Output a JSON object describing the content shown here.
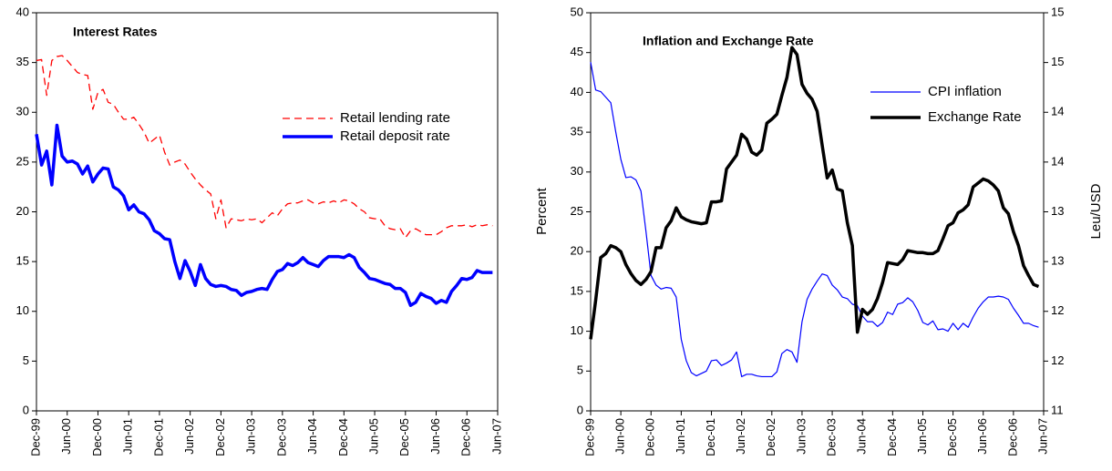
{
  "chart_data": [
    {
      "type": "line",
      "title": "Interest Rates",
      "categories": [
        "Dec-99",
        null,
        null,
        null,
        null,
        null,
        "Jun-00",
        null,
        null,
        null,
        null,
        null,
        "Dec-00",
        null,
        null,
        null,
        null,
        null,
        "Jun-01",
        null,
        null,
        null,
        null,
        null,
        "Dec-01",
        null,
        null,
        null,
        null,
        null,
        "Jun-02",
        null,
        null,
        null,
        null,
        null,
        "Dec-02",
        null,
        null,
        null,
        null,
        null,
        "Jun-03",
        null,
        null,
        null,
        null,
        null,
        "Dec-03",
        null,
        null,
        null,
        null,
        null,
        "Jun-04",
        null,
        null,
        null,
        null,
        null,
        "Dec-04",
        null,
        null,
        null,
        null,
        null,
        "Jun-05",
        null,
        null,
        null,
        null,
        null,
        "Dec-05",
        null,
        null,
        null,
        null,
        null,
        "Jun-06",
        null,
        null,
        null,
        null,
        null,
        "Dec-06",
        null,
        null,
        null,
        null,
        null,
        "Jun-07"
      ],
      "series": [
        {
          "name": "Retail lending rate",
          "color": "#ff0000",
          "style": "dashed",
          "values": [
            35.2,
            35.3,
            31.7,
            35.2,
            35.6,
            35.7,
            35.2,
            34.6,
            34.0,
            33.8,
            33.7,
            30.3,
            32.0,
            32.3,
            31.0,
            30.8,
            30.0,
            29.3,
            29.3,
            29.5,
            28.8,
            28.0,
            26.9,
            27.3,
            27.7,
            26.0,
            24.7,
            25.0,
            25.2,
            24.8,
            24.0,
            23.3,
            22.7,
            22.2,
            21.8,
            19.3,
            21.2,
            18.4,
            19.3,
            19.2,
            19.1,
            19.3,
            19.2,
            19.3,
            18.9,
            19.4,
            19.9,
            19.6,
            20.3,
            20.8,
            20.9,
            20.9,
            21.1,
            21.2,
            20.9,
            20.8,
            21.0,
            20.9,
            21.1,
            20.9,
            21.2,
            21.1,
            20.8,
            20.3,
            20.0,
            19.4,
            19.3,
            19.3,
            18.6,
            18.3,
            18.2,
            18.3,
            17.4,
            18.1,
            18.3,
            18.0,
            17.7,
            17.7,
            17.7,
            18.0,
            18.4,
            18.6,
            18.6,
            18.6,
            18.7,
            18.5,
            18.7,
            18.6,
            18.7,
            18.6,
            null
          ]
        },
        {
          "name": "Retail deposit rate",
          "color": "#0000ff",
          "style": "solid",
          "values": [
            27.8,
            24.7,
            26.1,
            22.7,
            28.7,
            25.6,
            25.0,
            25.1,
            24.8,
            23.8,
            24.6,
            23.0,
            23.8,
            24.4,
            24.3,
            22.5,
            22.2,
            21.6,
            20.2,
            20.7,
            20.0,
            19.8,
            19.2,
            18.1,
            17.8,
            17.3,
            17.2,
            15.0,
            13.3,
            15.1,
            14.0,
            12.6,
            14.7,
            13.3,
            12.7,
            12.5,
            12.6,
            12.5,
            12.2,
            12.1,
            11.6,
            11.9,
            12.0,
            12.2,
            12.3,
            12.2,
            13.2,
            14.0,
            14.2,
            14.8,
            14.6,
            14.9,
            15.4,
            14.9,
            14.7,
            14.5,
            15.1,
            15.5,
            15.5,
            15.5,
            15.4,
            15.7,
            15.4,
            14.4,
            13.9,
            13.3,
            13.2,
            13.0,
            12.8,
            12.7,
            12.3,
            12.3,
            11.9,
            10.6,
            10.9,
            11.8,
            11.5,
            11.3,
            10.8,
            11.1,
            10.9,
            12.0,
            12.6,
            13.3,
            13.2,
            13.4,
            14.1,
            13.9,
            13.9,
            13.9,
            null
          ]
        }
      ],
      "ylim": [
        0,
        40
      ],
      "yticks": [
        0,
        5,
        10,
        15,
        20,
        25,
        30,
        35,
        40
      ],
      "legend": "upper right"
    },
    {
      "type": "line",
      "title": "Inflation and Exchange Rate",
      "y_label": "Percent",
      "y2_label": "Leu/USD",
      "categories": [
        "Dec-99",
        null,
        null,
        null,
        null,
        null,
        "Jun-00",
        null,
        null,
        null,
        null,
        null,
        "Dec-00",
        null,
        null,
        null,
        null,
        null,
        "Jun-01",
        null,
        null,
        null,
        null,
        null,
        "Dec-01",
        null,
        null,
        null,
        null,
        null,
        "Jun-02",
        null,
        null,
        null,
        null,
        null,
        "Dec-02",
        null,
        null,
        null,
        null,
        null,
        "Jun-03",
        null,
        null,
        null,
        null,
        null,
        "Dec-03",
        null,
        null,
        null,
        null,
        null,
        "Jun-04",
        null,
        null,
        null,
        null,
        null,
        "Dec-04",
        null,
        null,
        null,
        null,
        null,
        "Jun-05",
        null,
        null,
        null,
        null,
        null,
        "Dec-05",
        null,
        null,
        null,
        null,
        null,
        "Jun-06",
        null,
        null,
        null,
        null,
        null,
        "Dec-06",
        null,
        null,
        null,
        null,
        null,
        "Jun-07"
      ],
      "series": [
        {
          "name": "CPI inflation",
          "color": "#0000ff",
          "style": "solid",
          "values": [
            43.8,
            40.3,
            40.1,
            39.4,
            38.7,
            35.0,
            31.6,
            29.3,
            29.4,
            29.0,
            27.6,
            22.5,
            17.0,
            15.8,
            15.3,
            15.5,
            15.4,
            14.3,
            9.0,
            6.3,
            4.8,
            4.4,
            4.7,
            5.0,
            6.3,
            6.4,
            5.7,
            6.0,
            6.4,
            7.4,
            4.3,
            4.6,
            4.6,
            4.4,
            4.3,
            4.3,
            4.3,
            4.9,
            7.2,
            7.7,
            7.4,
            6.1,
            11.2,
            14.0,
            15.3,
            16.3,
            17.2,
            17.0,
            15.8,
            15.2,
            14.3,
            14.1,
            13.4,
            13.2,
            11.9,
            11.2,
            11.2,
            10.6,
            11.1,
            12.4,
            12.1,
            13.4,
            13.6,
            14.2,
            13.7,
            12.6,
            11.1,
            10.8,
            11.3,
            10.2,
            10.3,
            10.0,
            11.0,
            10.2,
            11.0,
            10.5,
            11.8,
            12.9,
            13.7,
            14.3,
            14.3,
            14.4,
            14.3,
            14.0,
            12.9,
            12.0,
            11.0,
            11.0,
            10.7,
            10.5,
            null
          ]
        },
        {
          "name": "Exchange Rate",
          "color": "#000000",
          "style": "solid",
          "axis": "y2",
          "values": [
            11.72,
            12.11,
            12.54,
            12.58,
            12.66,
            12.64,
            12.6,
            12.47,
            12.38,
            12.31,
            12.27,
            12.32,
            12.4,
            12.64,
            12.64,
            12.84,
            12.91,
            13.04,
            12.95,
            12.92,
            12.9,
            12.89,
            12.88,
            12.89,
            13.1,
            13.1,
            13.11,
            13.43,
            13.5,
            13.57,
            13.78,
            13.73,
            13.6,
            13.57,
            13.62,
            13.89,
            13.93,
            13.98,
            14.17,
            14.35,
            14.65,
            14.58,
            14.28,
            14.19,
            14.13,
            14.01,
            13.67,
            13.34,
            13.42,
            13.23,
            13.21,
            12.89,
            12.66,
            11.79,
            12.02,
            11.97,
            12.02,
            12.13,
            12.29,
            12.49,
            12.48,
            12.47,
            12.52,
            12.61,
            12.6,
            12.59,
            12.59,
            12.58,
            12.58,
            12.61,
            12.73,
            12.86,
            12.89,
            12.99,
            13.02,
            13.07,
            13.25,
            13.29,
            13.33,
            13.31,
            13.27,
            13.21,
            13.04,
            12.98,
            12.8,
            12.66,
            12.46,
            12.36,
            12.27,
            12.25,
            null
          ]
        }
      ],
      "ylim": [
        0,
        50
      ],
      "yticks": [
        0,
        5,
        10,
        15,
        20,
        25,
        30,
        35,
        40,
        45,
        50
      ],
      "y2lim": [
        11,
        15
      ],
      "y2ticks": [
        11,
        {
          "value": 11.5,
          "label": "12"
        },
        12,
        {
          "value": 12.5,
          "label": "13"
        },
        13,
        {
          "value": 13.5,
          "label": "14"
        },
        14,
        {
          "value": 14.5,
          "label": "15"
        },
        15
      ],
      "legend": "upper right"
    }
  ]
}
